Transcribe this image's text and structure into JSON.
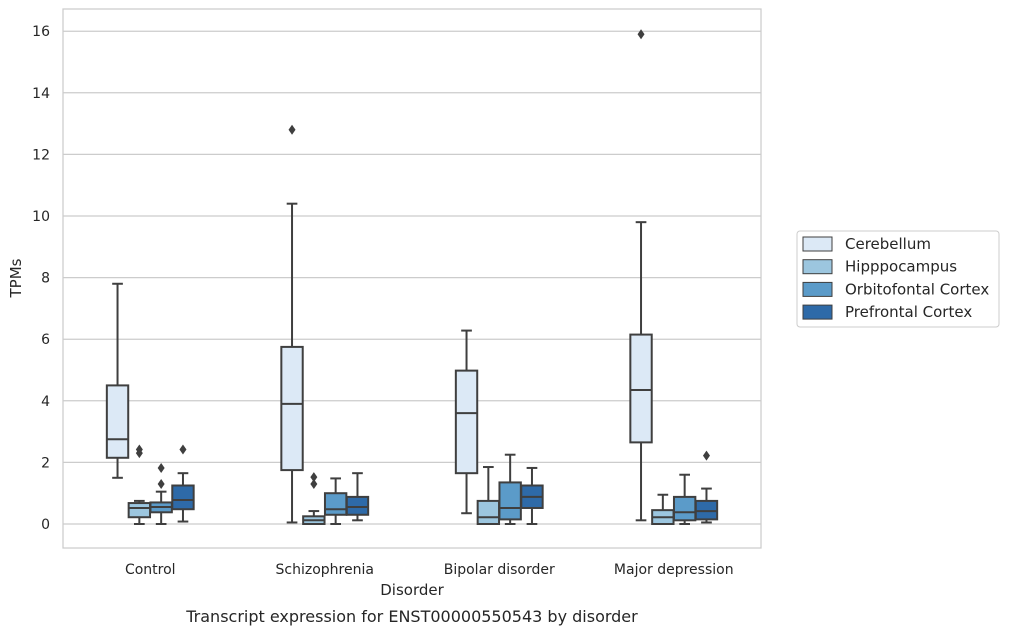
{
  "chart_data": {
    "type": "box",
    "caption": "Transcript expression for ENST00000550543 by disorder",
    "xlabel": "Disorder",
    "ylabel": "TPMs",
    "ylim": [
      -0.8,
      16.7
    ],
    "yticks": [
      0,
      2,
      4,
      6,
      8,
      10,
      12,
      14,
      16
    ],
    "grid": "horizontal",
    "legend_placement": "right",
    "categories": [
      "Control",
      "Schizophrenia",
      "Bipolar disorder",
      "Major depression"
    ],
    "series": [
      {
        "name": "Cerebellum",
        "color": "#dce9f6",
        "boxes": [
          {
            "whislo": 1.5,
            "q1": 2.15,
            "med": 2.75,
            "q3": 4.5,
            "whishi": 7.8,
            "fliers": []
          },
          {
            "whislo": 0.05,
            "q1": 1.75,
            "med": 3.9,
            "q3": 5.75,
            "whishi": 10.4,
            "fliers": [
              12.8
            ]
          },
          {
            "whislo": 0.35,
            "q1": 1.65,
            "med": 3.6,
            "q3": 4.98,
            "whishi": 6.28,
            "fliers": []
          },
          {
            "whislo": 0.12,
            "q1": 2.65,
            "med": 4.35,
            "q3": 6.15,
            "whishi": 9.8,
            "fliers": [
              15.9
            ]
          }
        ]
      },
      {
        "name": "Hipppocampus",
        "color": "#9cc6df",
        "boxes": [
          {
            "whislo": 0.0,
            "q1": 0.22,
            "med": 0.52,
            "q3": 0.68,
            "whishi": 0.75,
            "fliers": [
              2.3,
              2.42
            ]
          },
          {
            "whislo": 0.0,
            "q1": 0.0,
            "med": 0.12,
            "q3": 0.25,
            "whishi": 0.42,
            "fliers": [
              1.3,
              1.52
            ]
          },
          {
            "whislo": 0.0,
            "q1": 0.0,
            "med": 0.22,
            "q3": 0.75,
            "whishi": 1.85,
            "fliers": []
          },
          {
            "whislo": 0.0,
            "q1": 0.0,
            "med": 0.22,
            "q3": 0.45,
            "whishi": 0.95,
            "fliers": []
          }
        ]
      },
      {
        "name": "Orbitofontal Cortex",
        "color": "#5b9bc9",
        "boxes": [
          {
            "whislo": 0.0,
            "q1": 0.38,
            "med": 0.55,
            "q3": 0.7,
            "whishi": 1.05,
            "fliers": [
              1.3,
              1.82
            ]
          },
          {
            "whislo": 0.0,
            "q1": 0.3,
            "med": 0.48,
            "q3": 1.0,
            "whishi": 1.48,
            "fliers": []
          },
          {
            "whislo": 0.0,
            "q1": 0.15,
            "med": 0.52,
            "q3": 1.35,
            "whishi": 2.25,
            "fliers": []
          },
          {
            "whislo": 0.0,
            "q1": 0.12,
            "med": 0.38,
            "q3": 0.88,
            "whishi": 1.6,
            "fliers": []
          }
        ]
      },
      {
        "name": "Prefrontal Cortex",
        "color": "#2e6aa8",
        "boxes": [
          {
            "whislo": 0.08,
            "q1": 0.48,
            "med": 0.78,
            "q3": 1.25,
            "whishi": 1.65,
            "fliers": [
              2.42
            ]
          },
          {
            "whislo": 0.12,
            "q1": 0.3,
            "med": 0.55,
            "q3": 0.88,
            "whishi": 1.65,
            "fliers": []
          },
          {
            "whislo": 0.0,
            "q1": 0.52,
            "med": 0.88,
            "q3": 1.25,
            "whishi": 1.82,
            "fliers": []
          },
          {
            "whislo": 0.05,
            "q1": 0.15,
            "med": 0.42,
            "q3": 0.75,
            "whishi": 1.15,
            "fliers": [
              2.22
            ]
          }
        ]
      }
    ]
  }
}
